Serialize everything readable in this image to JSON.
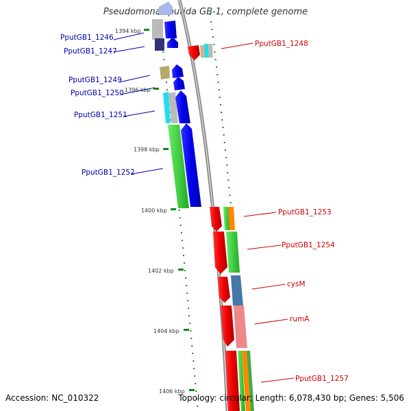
{
  "title": "Pseudomonas putida GB-1, complete genome",
  "accession": "Accession: NC_010322",
  "summary": "Topology: circular; Length: 6,078,430 bp; Genes: 5,506",
  "colors": {
    "strand_minus_label": "#0000aa",
    "strand_plus_label": "#cc0000",
    "tick": "#118811",
    "backbone": "#888888"
  },
  "coordinates": [
    {
      "label": "1394 kbp"
    },
    {
      "label": "1396 kbp"
    },
    {
      "label": "1398 kbp"
    },
    {
      "label": "1400 kbp"
    },
    {
      "label": "1402 kbp"
    },
    {
      "label": "1404 kbp"
    },
    {
      "label": "1406 kbp"
    }
  ],
  "genes": [
    {
      "label": "PputGB1_1246",
      "strand": "minus"
    },
    {
      "label": "PputGB1_1247",
      "strand": "minus"
    },
    {
      "label": "PputGB1_1248",
      "strand": "plus"
    },
    {
      "label": "PputGB1_1249",
      "strand": "minus"
    },
    {
      "label": "PputGB1_1250",
      "strand": "minus"
    },
    {
      "label": "PputGB1_1251",
      "strand": "minus"
    },
    {
      "label": "PputGB1_1252",
      "strand": "minus"
    },
    {
      "label": "PputGB1_1253",
      "strand": "plus"
    },
    {
      "label": "PputGB1_1254",
      "strand": "plus"
    },
    {
      "label": "cysM",
      "strand": "plus"
    },
    {
      "label": "rumA",
      "strand": "plus"
    },
    {
      "label": "PputGB1_1257",
      "strand": "plus"
    }
  ]
}
